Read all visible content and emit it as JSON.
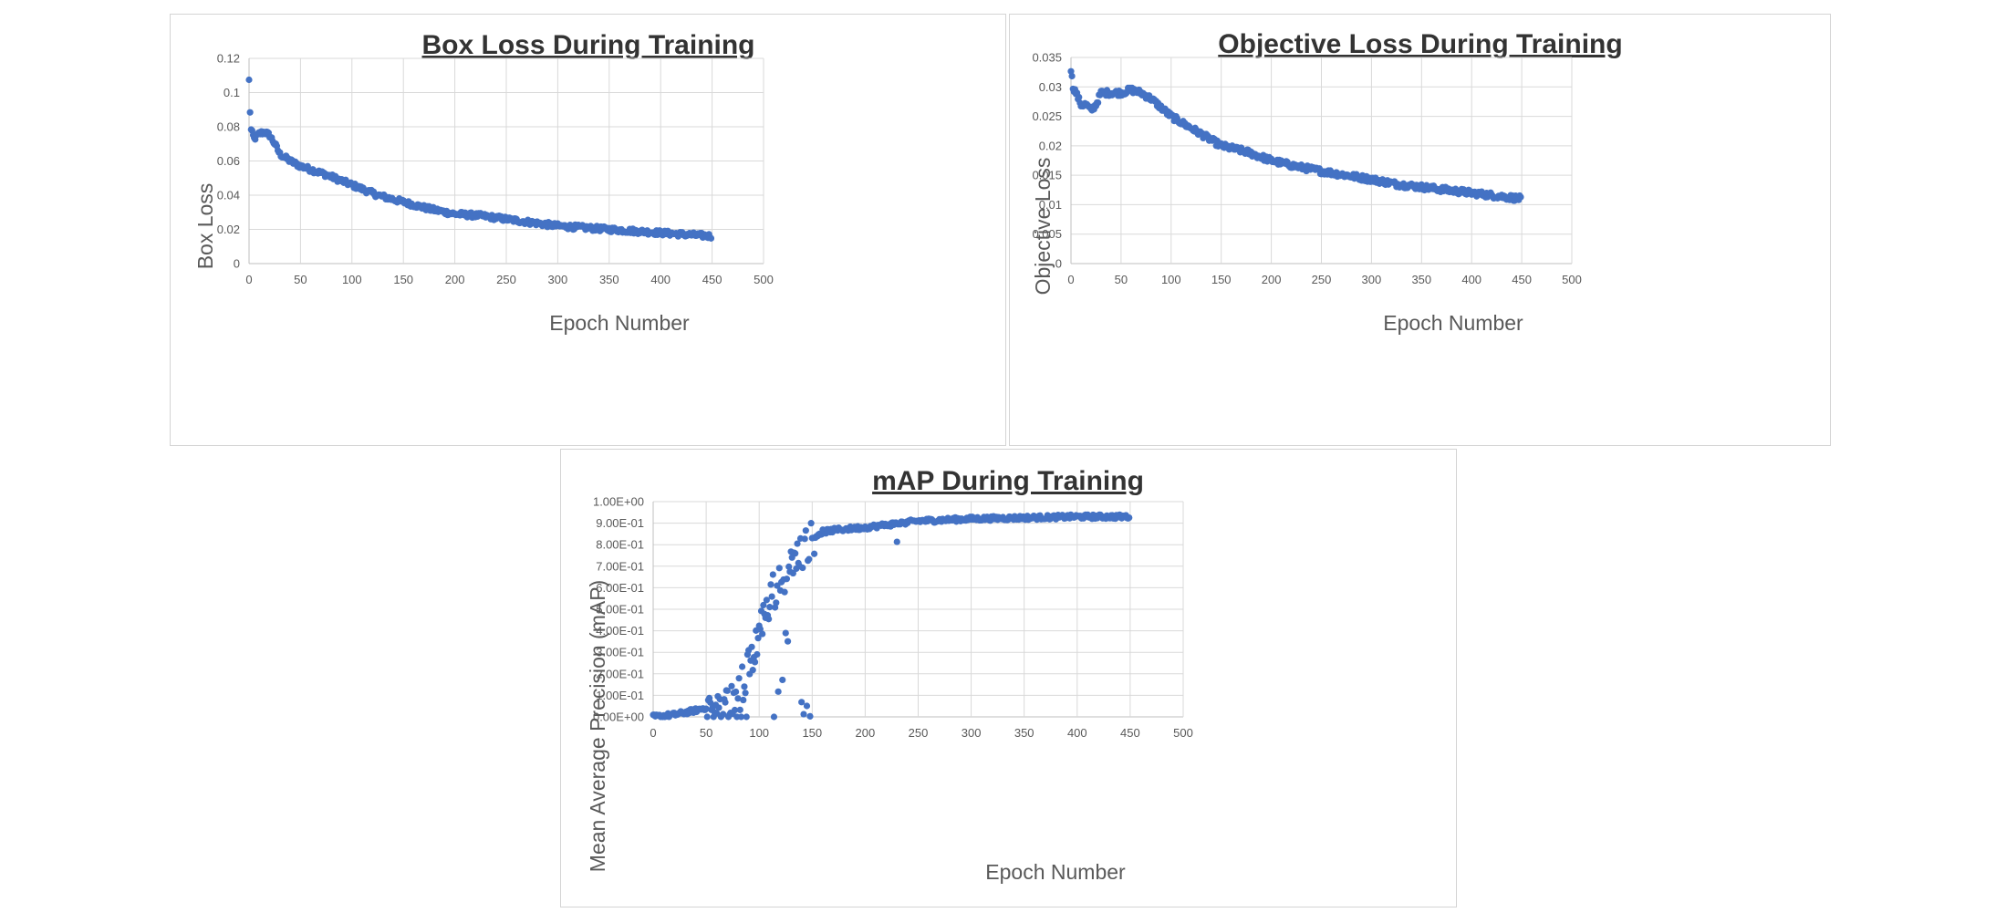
{
  "chart_data": [
    {
      "type": "scatter",
      "title": "Box Loss During Training",
      "xlabel": "Epoch Number",
      "ylabel": "Box Loss",
      "xlim": [
        0,
        500
      ],
      "ylim": [
        0,
        0.12
      ],
      "xticks": [
        0,
        50,
        100,
        150,
        200,
        250,
        300,
        350,
        400,
        450,
        500
      ],
      "yticks": [
        "0",
        "0.02",
        "0.04",
        "0.06",
        "0.08",
        "0.1",
        "0.12"
      ],
      "grid": true,
      "legend": "none",
      "color": "#4472C4",
      "key_points": [
        [
          0,
          0.107
        ],
        [
          1,
          0.089
        ],
        [
          2,
          0.078
        ],
        [
          5,
          0.073
        ],
        [
          10,
          0.076
        ],
        [
          15,
          0.077
        ],
        [
          20,
          0.075
        ],
        [
          25,
          0.07
        ],
        [
          30,
          0.064
        ],
        [
          40,
          0.06
        ],
        [
          50,
          0.057
        ],
        [
          75,
          0.052
        ],
        [
          100,
          0.046
        ],
        [
          125,
          0.04
        ],
        [
          150,
          0.036
        ],
        [
          175,
          0.032
        ],
        [
          200,
          0.029
        ],
        [
          225,
          0.028
        ],
        [
          250,
          0.026
        ],
        [
          275,
          0.024
        ],
        [
          300,
          0.022
        ],
        [
          325,
          0.021
        ],
        [
          350,
          0.02
        ],
        [
          375,
          0.019
        ],
        [
          400,
          0.018
        ],
        [
          425,
          0.017
        ],
        [
          450,
          0.016
        ]
      ],
      "n_points": 450
    },
    {
      "type": "scatter",
      "title": "Objective Loss During Training",
      "xlabel": "Epoch Number",
      "ylabel": "Objective Loss",
      "xlim": [
        0,
        500
      ],
      "ylim": [
        0,
        0.035
      ],
      "xticks": [
        0,
        50,
        100,
        150,
        200,
        250,
        300,
        350,
        400,
        450,
        500
      ],
      "yticks": [
        "0",
        "0.005",
        "0.01",
        "0.015",
        "0.02",
        "0.025",
        "0.03",
        "0.035"
      ],
      "grid": true,
      "legend": "none",
      "color": "#4472C4",
      "key_points": [
        [
          0,
          0.033
        ],
        [
          2,
          0.03
        ],
        [
          5,
          0.029
        ],
        [
          10,
          0.027
        ],
        [
          15,
          0.027
        ],
        [
          20,
          0.026
        ],
        [
          25,
          0.027
        ],
        [
          30,
          0.029
        ],
        [
          40,
          0.029
        ],
        [
          50,
          0.029
        ],
        [
          60,
          0.0295
        ],
        [
          70,
          0.029
        ],
        [
          80,
          0.028
        ],
        [
          90,
          0.0265
        ],
        [
          100,
          0.025
        ],
        [
          125,
          0.0225
        ],
        [
          150,
          0.02
        ],
        [
          175,
          0.019
        ],
        [
          200,
          0.0175
        ],
        [
          225,
          0.0165
        ],
        [
          250,
          0.0157
        ],
        [
          275,
          0.015
        ],
        [
          300,
          0.0143
        ],
        [
          325,
          0.0135
        ],
        [
          350,
          0.013
        ],
        [
          375,
          0.0125
        ],
        [
          400,
          0.012
        ],
        [
          425,
          0.0115
        ],
        [
          450,
          0.011
        ]
      ],
      "n_points": 450
    },
    {
      "type": "scatter",
      "title": "mAP During Training",
      "xlabel": "Epoch Number",
      "ylabel": "Mean Average Precision (mAP)",
      "xlim": [
        0,
        500
      ],
      "ylim": [
        0,
        1
      ],
      "xticks": [
        0,
        50,
        100,
        150,
        200,
        250,
        300,
        350,
        400,
        450,
        500
      ],
      "yticks": [
        "0.00E+00",
        "1.00E-01",
        "2.00E-01",
        "3.00E-01",
        "4.00E-01",
        "5.00E-01",
        "6.00E-01",
        "7.00E-01",
        "8.00E-01",
        "9.00E-01",
        "1.00E+00"
      ],
      "grid": true,
      "legend": "none",
      "color": "#4472C4",
      "key_points": [
        [
          0,
          0.0
        ],
        [
          20,
          0.01
        ],
        [
          40,
          0.03
        ],
        [
          55,
          0.05
        ],
        [
          70,
          0.07
        ],
        [
          80,
          0.1
        ],
        [
          90,
          0.22
        ],
        [
          100,
          0.4
        ],
        [
          110,
          0.55
        ],
        [
          120,
          0.62
        ],
        [
          130,
          0.7
        ],
        [
          140,
          0.78
        ],
        [
          150,
          0.83
        ],
        [
          160,
          0.86
        ],
        [
          175,
          0.87
        ],
        [
          200,
          0.88
        ],
        [
          225,
          0.895
        ],
        [
          250,
          0.91
        ],
        [
          275,
          0.915
        ],
        [
          300,
          0.92
        ],
        [
          350,
          0.925
        ],
        [
          400,
          0.93
        ],
        [
          450,
          0.93
        ]
      ],
      "n_points": 450
    }
  ]
}
